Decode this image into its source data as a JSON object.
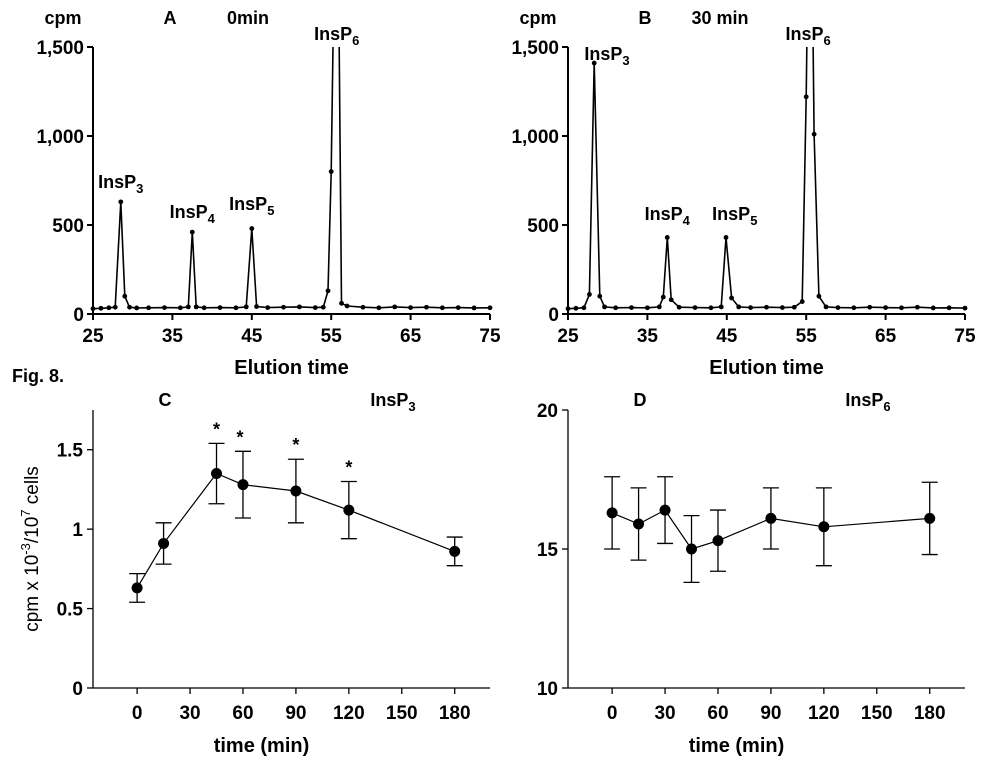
{
  "figure_label": "Fig. 8.",
  "chart_data": [
    {
      "type": "line",
      "panel": "A",
      "subtitle": "0min",
      "ylabel": "cpm",
      "xlabel": "Elution time",
      "xlim": [
        25,
        75
      ],
      "ylim": [
        0,
        1500
      ],
      "x_ticks": [
        25,
        35,
        45,
        55,
        65,
        75
      ],
      "y_ticks": [
        0,
        500,
        1000,
        1500
      ],
      "y_tick_labels": [
        "0",
        "500",
        "1,000",
        "1,500"
      ],
      "clipped_above": true,
      "peaks": [
        {
          "name": "InsP",
          "sub": "3",
          "x": 28.5
        },
        {
          "name": "InsP",
          "sub": "4",
          "x": 37.5
        },
        {
          "name": "InsP",
          "sub": "5",
          "x": 45.0
        },
        {
          "name": "InsP",
          "sub": "6",
          "x": 55.7
        }
      ],
      "points": [
        [
          25,
          30
        ],
        [
          26,
          32
        ],
        [
          27,
          35
        ],
        [
          27.8,
          38
        ],
        [
          28.5,
          630
        ],
        [
          29,
          100
        ],
        [
          29.6,
          38
        ],
        [
          30.5,
          34
        ],
        [
          32,
          35
        ],
        [
          34,
          36
        ],
        [
          36,
          35
        ],
        [
          37,
          40
        ],
        [
          37.5,
          460
        ],
        [
          38,
          40
        ],
        [
          39,
          35
        ],
        [
          41,
          36
        ],
        [
          43,
          35
        ],
        [
          44.3,
          40
        ],
        [
          45,
          480
        ],
        [
          45.6,
          42
        ],
        [
          47,
          36
        ],
        [
          49,
          38
        ],
        [
          51,
          40
        ],
        [
          53,
          36
        ],
        [
          54,
          38
        ],
        [
          54.6,
          130
        ],
        [
          55,
          800
        ],
        [
          55.7,
          3000
        ],
        [
          56.3,
          60
        ],
        [
          57,
          45
        ],
        [
          59,
          38
        ],
        [
          61,
          35
        ],
        [
          63,
          40
        ],
        [
          65,
          36
        ],
        [
          67,
          38
        ],
        [
          69,
          35
        ],
        [
          71,
          36
        ],
        [
          73,
          34
        ],
        [
          75,
          35
        ]
      ]
    },
    {
      "type": "line",
      "panel": "B",
      "subtitle": "30 min",
      "ylabel": "cpm",
      "xlabel": "Elution time",
      "xlim": [
        25,
        75
      ],
      "ylim": [
        0,
        1500
      ],
      "x_ticks": [
        25,
        35,
        45,
        55,
        65,
        75
      ],
      "y_ticks": [
        0,
        500,
        1000,
        1500
      ],
      "y_tick_labels": [
        "0",
        "500",
        "1,000",
        "1,500"
      ],
      "clipped_above": true,
      "peaks": [
        {
          "name": "InsP",
          "sub": "3",
          "x": 28.4
        },
        {
          "name": "InsP",
          "sub": "4",
          "x": 37.5
        },
        {
          "name": "InsP",
          "sub": "5",
          "x": 45.0
        },
        {
          "name": "InsP",
          "sub": "6",
          "x": 55.5
        }
      ],
      "points": [
        [
          25,
          30
        ],
        [
          26,
          32
        ],
        [
          27,
          35
        ],
        [
          27.7,
          110
        ],
        [
          28.3,
          1410
        ],
        [
          29,
          100
        ],
        [
          29.6,
          40
        ],
        [
          31,
          35
        ],
        [
          33,
          36
        ],
        [
          35,
          35
        ],
        [
          36.5,
          40
        ],
        [
          37,
          95
        ],
        [
          37.5,
          430
        ],
        [
          38,
          80
        ],
        [
          39,
          38
        ],
        [
          41,
          36
        ],
        [
          43,
          35
        ],
        [
          44.3,
          40
        ],
        [
          44.9,
          430
        ],
        [
          45.6,
          90
        ],
        [
          46.5,
          40
        ],
        [
          48,
          36
        ],
        [
          50,
          38
        ],
        [
          52,
          36
        ],
        [
          53.5,
          38
        ],
        [
          54.5,
          70
        ],
        [
          55,
          1220
        ],
        [
          55.5,
          3000
        ],
        [
          56,
          1010
        ],
        [
          56.6,
          100
        ],
        [
          57.5,
          40
        ],
        [
          59,
          36
        ],
        [
          61,
          35
        ],
        [
          63,
          38
        ],
        [
          65,
          36
        ],
        [
          67,
          35
        ],
        [
          69,
          38
        ],
        [
          71,
          34
        ],
        [
          73,
          35
        ],
        [
          75,
          33
        ]
      ]
    },
    {
      "type": "line",
      "panel": "C",
      "series_name": "InsP",
      "series_sub": "3",
      "ylabel": "cpm x 10-3/107 cells",
      "xlabel": "time (min)",
      "xlim": [
        -25,
        200
      ],
      "ylim": [
        0,
        1.75
      ],
      "x_ticks": [
        0,
        30,
        60,
        90,
        120,
        150,
        180
      ],
      "y_ticks": [
        0,
        0.5,
        1,
        1.5
      ],
      "y_tick_labels": [
        "0",
        "0.5",
        "1",
        "1.5"
      ],
      "x": [
        0,
        15,
        45,
        60,
        90,
        120,
        180
      ],
      "values": [
        0.63,
        0.91,
        1.35,
        1.28,
        1.24,
        1.12,
        0.86
      ],
      "errors": [
        0.09,
        0.13,
        0.19,
        0.21,
        0.2,
        0.18,
        0.09
      ],
      "significant": [
        false,
        false,
        true,
        true,
        true,
        true,
        false
      ],
      "significance_mark": "*"
    },
    {
      "type": "line",
      "panel": "D",
      "series_name": "InsP",
      "series_sub": "6",
      "xlabel": "time (min)",
      "xlim": [
        -25,
        200
      ],
      "ylim": [
        10,
        20
      ],
      "x_ticks": [
        0,
        30,
        60,
        90,
        120,
        150,
        180
      ],
      "y_ticks": [
        10,
        15,
        20
      ],
      "y_tick_labels": [
        "10",
        "15",
        "20"
      ],
      "x": [
        0,
        15,
        30,
        45,
        60,
        90,
        120,
        180
      ],
      "values": [
        16.3,
        15.9,
        16.4,
        15.0,
        15.3,
        16.1,
        15.8,
        16.1
      ],
      "errors": [
        1.3,
        1.3,
        1.2,
        1.2,
        1.1,
        1.1,
        1.4,
        1.3
      ]
    }
  ]
}
